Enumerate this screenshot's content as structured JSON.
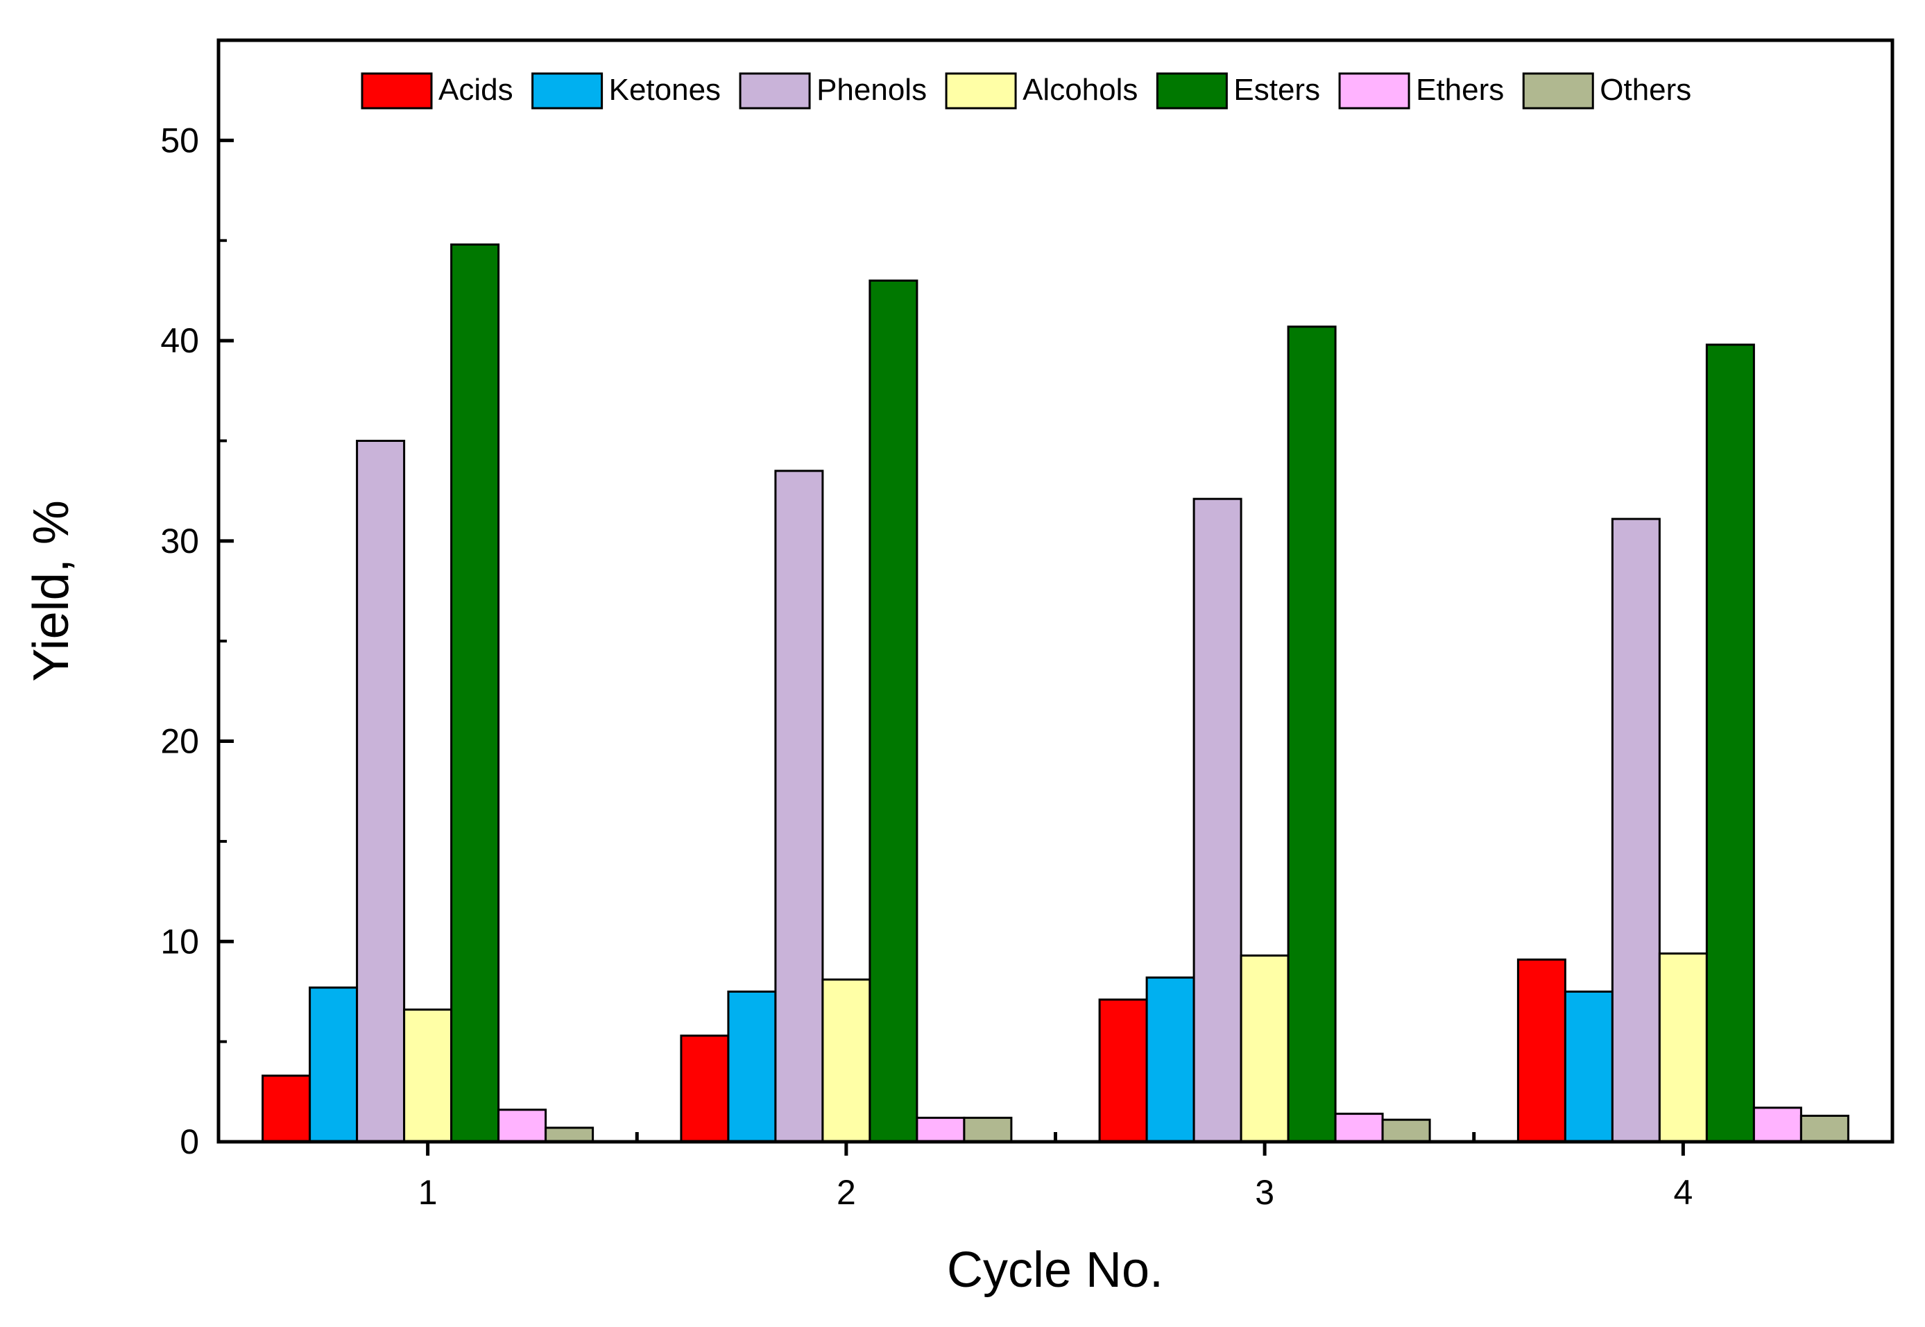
{
  "chart_data": {
    "type": "bar",
    "title": "",
    "xlabel": "Cycle No.",
    "ylabel": "Yield, %",
    "categories": [
      "1",
      "2",
      "3",
      "4"
    ],
    "ylim": [
      0,
      55
    ],
    "yticks": [
      0,
      10,
      20,
      30,
      40,
      50
    ],
    "grid": false,
    "legend_position": "top",
    "series": [
      {
        "name": "Acids",
        "color": "#ff0000",
        "values": [
          3.3,
          5.3,
          7.1,
          9.1
        ]
      },
      {
        "name": "Ketones",
        "color": "#00b0f0",
        "values": [
          7.7,
          7.5,
          8.2,
          7.5
        ]
      },
      {
        "name": "Phenols",
        "color": "#c9b3d9",
        "values": [
          35.0,
          33.5,
          32.1,
          31.1
        ]
      },
      {
        "name": "Alcohols",
        "color": "#ffffa6",
        "values": [
          6.6,
          8.1,
          9.3,
          9.4
        ]
      },
      {
        "name": "Esters",
        "color": "#007800",
        "values": [
          44.8,
          43.0,
          40.7,
          39.8
        ]
      },
      {
        "name": "Ethers",
        "color": "#ffb3ff",
        "values": [
          1.6,
          1.2,
          1.4,
          1.7
        ]
      },
      {
        "name": "Others",
        "color": "#b0b890",
        "values": [
          0.7,
          1.2,
          1.1,
          1.3
        ]
      }
    ]
  }
}
